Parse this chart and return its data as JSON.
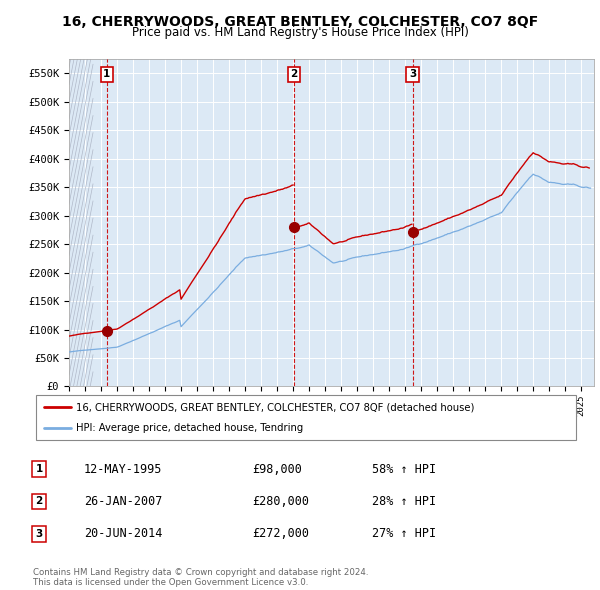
{
  "title": "16, CHERRYWOODS, GREAT BENTLEY, COLCHESTER, CO7 8QF",
  "subtitle": "Price paid vs. HM Land Registry's House Price Index (HPI)",
  "ylim": [
    0,
    575000
  ],
  "yticks": [
    0,
    50000,
    100000,
    150000,
    200000,
    250000,
    300000,
    350000,
    400000,
    450000,
    500000,
    550000
  ],
  "ytick_labels": [
    "£0",
    "£50K",
    "£100K",
    "£150K",
    "£200K",
    "£250K",
    "£300K",
    "£350K",
    "£400K",
    "£450K",
    "£500K",
    "£550K"
  ],
  "background_color": "#ffffff",
  "plot_bg_color": "#dce9f5",
  "grid_color": "#ffffff",
  "hpi_line_color": "#7aade0",
  "price_line_color": "#cc0000",
  "sale_marker_color": "#990000",
  "vline_color": "#cc0000",
  "transactions": [
    {
      "date_num": 1995.36,
      "price": 98000,
      "label": "1"
    },
    {
      "date_num": 2007.07,
      "price": 280000,
      "label": "2"
    },
    {
      "date_num": 2014.47,
      "price": 272000,
      "label": "3"
    }
  ],
  "legend_line1": "16, CHERRYWOODS, GREAT BENTLEY, COLCHESTER, CO7 8QF (detached house)",
  "legend_line2": "HPI: Average price, detached house, Tendring",
  "table_rows": [
    {
      "num": "1",
      "date": "12-MAY-1995",
      "price": "£98,000",
      "hpi": "58% ↑ HPI"
    },
    {
      "num": "2",
      "date": "26-JAN-2007",
      "price": "£280,000",
      "hpi": "28% ↑ HPI"
    },
    {
      "num": "3",
      "date": "20-JUN-2014",
      "price": "£272,000",
      "hpi": "27% ↑ HPI"
    }
  ],
  "footer": "Contains HM Land Registry data © Crown copyright and database right 2024.\nThis data is licensed under the Open Government Licence v3.0."
}
